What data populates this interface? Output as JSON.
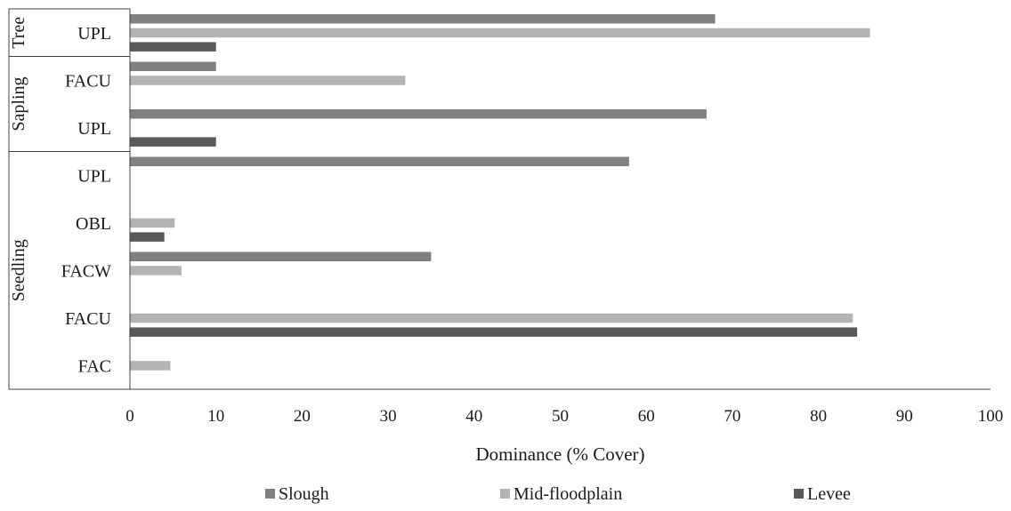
{
  "chart_data": {
    "type": "bar",
    "orientation": "horizontal",
    "xlabel": "Dominance (% Cover)",
    "xlim": [
      0,
      100
    ],
    "xticks": [
      0,
      10,
      20,
      30,
      40,
      50,
      60,
      70,
      80,
      90,
      100
    ],
    "grid": false,
    "legend_position": "bottom",
    "groups": [
      {
        "name": "Tree",
        "categories": [
          "UPL"
        ]
      },
      {
        "name": "Sapling",
        "categories": [
          "FACU",
          "UPL"
        ]
      },
      {
        "name": "Seedling",
        "categories": [
          "UPL",
          "OBL",
          "FACW",
          "FACU",
          "FAC"
        ]
      }
    ],
    "categories": [
      "UPL",
      "FACU",
      "UPL",
      "UPL",
      "OBL",
      "FACW",
      "FACU",
      "FAC"
    ],
    "series": [
      {
        "name": "Slough",
        "color": "#808080",
        "values": [
          68,
          10,
          67,
          58,
          0,
          35,
          0,
          0
        ]
      },
      {
        "name": "Mid-floodplain",
        "color": "#b3b3b3",
        "values": [
          86,
          32,
          0,
          0,
          5.2,
          6,
          84,
          4.7
        ]
      },
      {
        "name": "Levee",
        "color": "#595959",
        "values": [
          10,
          0,
          10,
          0,
          4,
          0,
          84.5,
          0
        ]
      }
    ]
  }
}
